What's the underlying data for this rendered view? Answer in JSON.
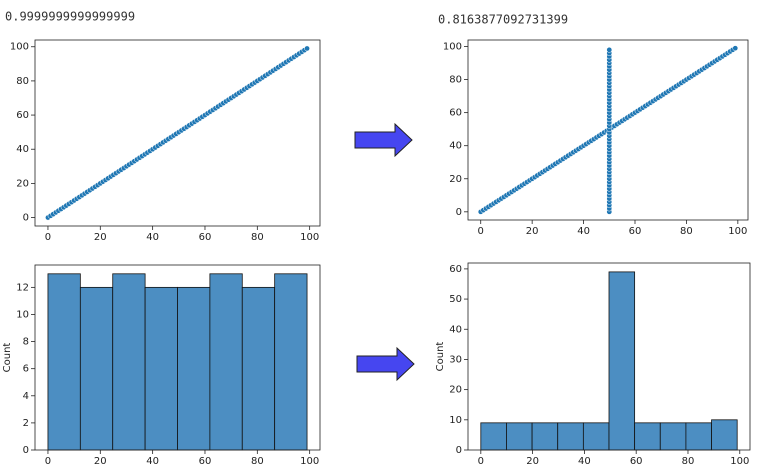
{
  "chart_data": [
    {
      "type": "scatter",
      "annotation": "0.9999999999999999",
      "color": "#1f77b4",
      "x": [
        0,
        1,
        2,
        3,
        4,
        5,
        6,
        7,
        8,
        9,
        10,
        11,
        12,
        13,
        14,
        15,
        16,
        17,
        18,
        19,
        20,
        21,
        22,
        23,
        24,
        25,
        26,
        27,
        28,
        29,
        30,
        31,
        32,
        33,
        34,
        35,
        36,
        37,
        38,
        39,
        40,
        41,
        42,
        43,
        44,
        45,
        46,
        47,
        48,
        49,
        50,
        51,
        52,
        53,
        54,
        55,
        56,
        57,
        58,
        59,
        60,
        61,
        62,
        63,
        64,
        65,
        66,
        67,
        68,
        69,
        70,
        71,
        72,
        73,
        74,
        75,
        76,
        77,
        78,
        79,
        80,
        81,
        82,
        83,
        84,
        85,
        86,
        87,
        88,
        89,
        90,
        91,
        92,
        93,
        94,
        95,
        96,
        97,
        98,
        99
      ],
      "y": [
        0,
        1,
        2,
        3,
        4,
        5,
        6,
        7,
        8,
        9,
        10,
        11,
        12,
        13,
        14,
        15,
        16,
        17,
        18,
        19,
        20,
        21,
        22,
        23,
        24,
        25,
        26,
        27,
        28,
        29,
        30,
        31,
        32,
        33,
        34,
        35,
        36,
        37,
        38,
        39,
        40,
        41,
        42,
        43,
        44,
        45,
        46,
        47,
        48,
        49,
        50,
        51,
        52,
        53,
        54,
        55,
        56,
        57,
        58,
        59,
        60,
        61,
        62,
        63,
        64,
        65,
        66,
        67,
        68,
        69,
        70,
        71,
        72,
        73,
        74,
        75,
        76,
        77,
        78,
        79,
        80,
        81,
        82,
        83,
        84,
        85,
        86,
        87,
        88,
        89,
        90,
        91,
        92,
        93,
        94,
        95,
        96,
        97,
        98,
        99
      ],
      "xlim": [
        -4.95,
        103.95
      ],
      "ylim": [
        -4.95,
        103.95
      ],
      "xticks": [
        0,
        20,
        40,
        60,
        80,
        100
      ],
      "yticks": [
        0,
        20,
        40,
        60,
        80,
        100
      ]
    },
    {
      "type": "scatter",
      "annotation": "0.8163877092731399",
      "color": "#1f77b4",
      "x": [
        0,
        1,
        2,
        3,
        4,
        5,
        6,
        7,
        8,
        9,
        10,
        11,
        12,
        13,
        14,
        15,
        16,
        17,
        18,
        19,
        20,
        21,
        22,
        23,
        24,
        25,
        26,
        27,
        28,
        29,
        30,
        31,
        32,
        33,
        34,
        35,
        36,
        37,
        38,
        39,
        40,
        41,
        42,
        43,
        44,
        45,
        46,
        47,
        48,
        49,
        50,
        51,
        52,
        53,
        54,
        55,
        56,
        57,
        58,
        59,
        60,
        61,
        62,
        63,
        64,
        65,
        66,
        67,
        68,
        69,
        70,
        71,
        72,
        73,
        74,
        75,
        76,
        77,
        78,
        79,
        80,
        81,
        82,
        83,
        84,
        85,
        86,
        87,
        88,
        89,
        90,
        91,
        92,
        93,
        94,
        95,
        96,
        97,
        98,
        99,
        50,
        50,
        50,
        50,
        50,
        50,
        50,
        50,
        50,
        50,
        50,
        50,
        50,
        50,
        50,
        50,
        50,
        50,
        50,
        50,
        50,
        50,
        50,
        50,
        50,
        50,
        50,
        50,
        50,
        50,
        50,
        50,
        50,
        50,
        50,
        50,
        50,
        50,
        50,
        50,
        50,
        50,
        50,
        50,
        50,
        50,
        50,
        50,
        50,
        50
      ],
      "y": [
        0,
        1,
        2,
        3,
        4,
        5,
        6,
        7,
        8,
        9,
        10,
        11,
        12,
        13,
        14,
        15,
        16,
        17,
        18,
        19,
        20,
        21,
        22,
        23,
        24,
        25,
        26,
        27,
        28,
        29,
        30,
        31,
        32,
        33,
        34,
        35,
        36,
        37,
        38,
        39,
        40,
        41,
        42,
        43,
        44,
        45,
        46,
        47,
        48,
        49,
        50,
        51,
        52,
        53,
        54,
        55,
        56,
        57,
        58,
        59,
        60,
        61,
        62,
        63,
        64,
        65,
        66,
        67,
        68,
        69,
        70,
        71,
        72,
        73,
        74,
        75,
        76,
        77,
        78,
        79,
        80,
        81,
        82,
        83,
        84,
        85,
        86,
        87,
        88,
        89,
        90,
        91,
        92,
        93,
        94,
        95,
        96,
        97,
        98,
        99,
        0,
        2,
        4,
        6,
        8,
        10,
        12,
        14,
        16,
        18,
        20,
        22,
        24,
        26,
        28,
        30,
        32,
        34,
        36,
        38,
        40,
        42,
        44,
        46,
        48,
        50,
        52,
        54,
        56,
        58,
        60,
        62,
        64,
        66,
        68,
        70,
        72,
        74,
        76,
        78,
        80,
        82,
        84,
        86,
        88,
        90,
        92,
        94,
        96,
        98
      ],
      "xlim": [
        -4.95,
        103.95
      ],
      "ylim": [
        -4.95,
        103.95
      ],
      "xticks": [
        0,
        20,
        40,
        60,
        80,
        100
      ],
      "yticks": [
        0,
        20,
        40,
        60,
        80,
        100
      ]
    },
    {
      "type": "histogram",
      "ylabel": "Count",
      "color": "#4c8ec2",
      "bins": [
        0,
        12.375,
        24.75,
        37.125,
        49.5,
        61.875,
        74.25,
        86.625,
        99
      ],
      "counts": [
        13,
        12,
        13,
        12,
        12,
        13,
        12,
        13
      ],
      "xlim": [
        -4.95,
        103.95
      ],
      "ylim": [
        0,
        13.65
      ],
      "xticks": [
        0,
        20,
        40,
        60,
        80,
        100
      ],
      "yticks": [
        0,
        2,
        4,
        6,
        8,
        10,
        12
      ]
    },
    {
      "type": "histogram",
      "ylabel": "Count",
      "color": "#4c8ec2",
      "bins": [
        0,
        9.9,
        19.8,
        29.7,
        39.6,
        49.5,
        59.4,
        69.3,
        79.2,
        89.1,
        99
      ],
      "counts": [
        9,
        9,
        9,
        9,
        9,
        59,
        9,
        9,
        9,
        10
      ],
      "xlim": [
        -4.95,
        103.95
      ],
      "ylim": [
        0,
        61.95
      ],
      "xticks": [
        0,
        20,
        40,
        60,
        80,
        100
      ],
      "yticks": [
        0,
        10,
        20,
        30,
        40,
        50,
        60
      ]
    }
  ]
}
